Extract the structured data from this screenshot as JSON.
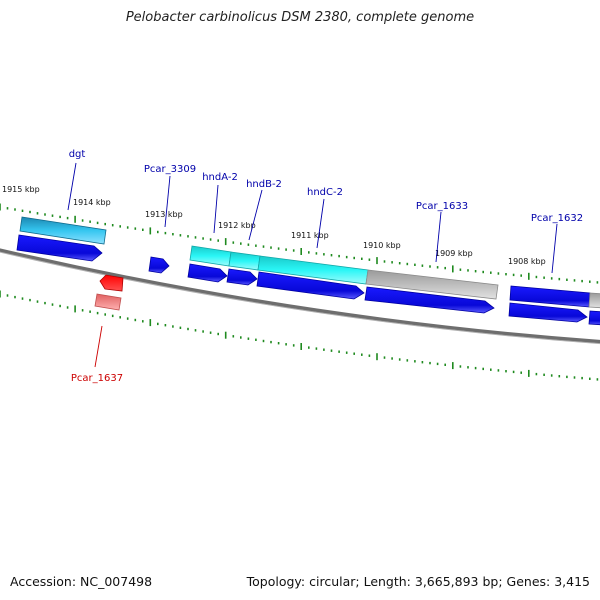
{
  "title": "Pelobacter carbinolicus DSM 2380, complete genome",
  "footer": {
    "accession": "Accession: NC_007498",
    "summary": "Topology: circular; Length: 3,665,893 bp; Genes: 3,415"
  },
  "colors": {
    "backbone": "#7a7a7a",
    "tick": "#1f8a1f",
    "cds_forward": "#1010e0",
    "cds_reverse": "#ff1a1a",
    "gene_blue": "#2a9ec8",
    "gene_cyan": "#22f0f0",
    "gene_gray": "#b4b4b4",
    "label_forward": "#0000aa",
    "label_reverse": "#cc0000"
  },
  "scale_labels": [
    "1915 kbp",
    "1914 kbp",
    "1913 kbp",
    "1912 kbp",
    "1911 kbp",
    "1910 kbp",
    "1909 kbp",
    "1908 kbp"
  ],
  "gene_labels": [
    {
      "text": "dgt",
      "strand": "forward"
    },
    {
      "text": "Pcar_3309",
      "strand": "forward"
    },
    {
      "text": "hndA-2",
      "strand": "forward"
    },
    {
      "text": "hndB-2",
      "strand": "forward"
    },
    {
      "text": "hndC-2",
      "strand": "forward"
    },
    {
      "text": "Pcar_1633",
      "strand": "forward"
    },
    {
      "text": "Pcar_1632",
      "strand": "forward"
    },
    {
      "text": "Pcar_1637",
      "strand": "reverse"
    }
  ]
}
